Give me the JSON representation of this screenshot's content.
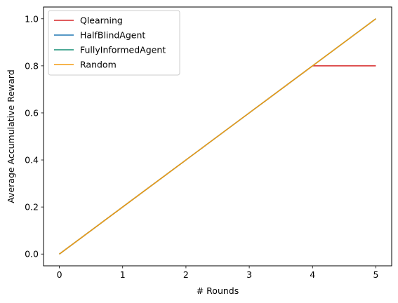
{
  "chart_data": {
    "type": "line",
    "title": "",
    "xlabel": "# Rounds",
    "ylabel": "Average Accumulative Reward",
    "x": [
      0,
      1,
      2,
      3,
      4,
      5
    ],
    "xlim": [
      -0.25,
      5.25
    ],
    "ylim": [
      -0.05,
      1.05
    ],
    "xticks": [
      "0",
      "1",
      "2",
      "3",
      "4",
      "5"
    ],
    "yticks": [
      "0.0",
      "0.2",
      "0.4",
      "0.6",
      "0.8",
      "1.0"
    ],
    "grid": false,
    "legend_position": "top-left",
    "series": [
      {
        "name": "Qlearning",
        "color": "#d62728",
        "values": [
          0.0,
          0.2,
          0.4,
          0.6,
          0.8,
          0.8
        ]
      },
      {
        "name": "HalfBlindAgent",
        "color": "#1f77b4",
        "values": [
          0.0,
          0.2,
          0.4,
          0.6,
          0.8,
          1.0
        ]
      },
      {
        "name": "FullyInformedAgent",
        "color": "#138d75",
        "values": [
          0.0,
          0.2,
          0.4,
          0.6,
          0.8,
          1.0
        ]
      },
      {
        "name": "Random",
        "color": "#f39c12",
        "values": [
          0.0,
          0.2,
          0.4,
          0.6,
          0.8,
          1.0
        ]
      }
    ]
  }
}
